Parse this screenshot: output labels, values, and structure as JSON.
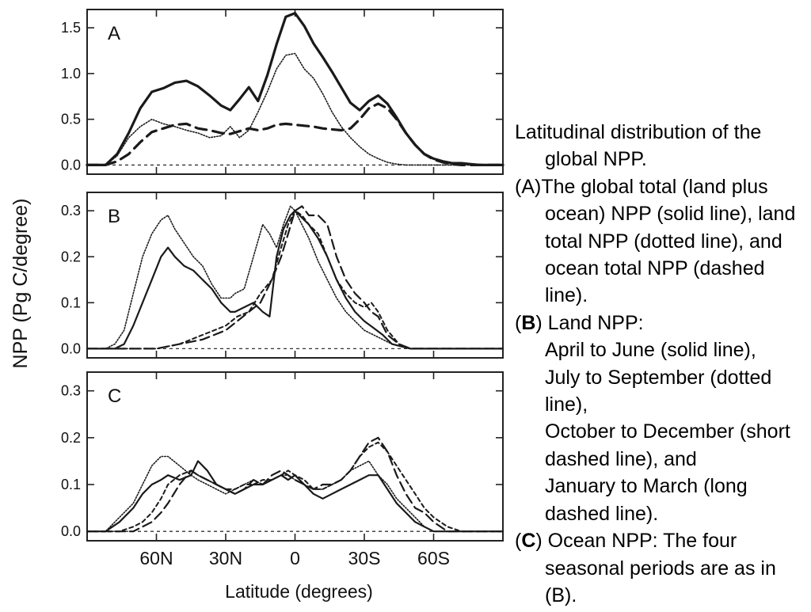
{
  "figure": {
    "ylabel": "NPP (Pg C/degree)",
    "xlabel": "Latitude  (degrees)",
    "x_ticks": [
      {
        "value": 60,
        "label": "60N"
      },
      {
        "value": 30,
        "label": "30N"
      },
      {
        "value": 0,
        "label": "0"
      },
      {
        "value": -30,
        "label": "30S"
      },
      {
        "value": -60,
        "label": "60S"
      }
    ]
  },
  "caption": {
    "title": "Latitudinal distribution of the global NPP.",
    "a_prefix": "(A)",
    "a_text": "The global total (land plus ocean) NPP (solid line), land total NPP (dotted line), and ocean total NPP (dashed line).",
    "b_open": "(",
    "b_letter": "B",
    "b_rest": ") Land NPP:",
    "b_line1": "April to June (solid line),",
    "b_line2": "July to September (dotted line),",
    "b_line3": "October to December (short dashed line), and",
    "b_line4": "January to March (long dashed line).",
    "c_open": "(",
    "c_letter": "C",
    "c_rest": ") Ocean NPP: The four seasonal periods are as in (B)."
  },
  "chart_data": [
    {
      "type": "line",
      "panel_label": "A",
      "xlabel": "Latitude  (degrees)",
      "ylabel": "NPP (Pg C/degree)",
      "xlim": [
        90,
        -90
      ],
      "ylim": [
        -0.1,
        1.7
      ],
      "yticks": [
        0.0,
        0.5,
        1.0,
        1.5
      ],
      "ytick_labels": [
        "0.0",
        "0.5",
        "1.0",
        "1.5"
      ],
      "zero_line": "dashed",
      "series": [
        {
          "style": "solid-thick",
          "x": [
            90,
            82,
            77,
            72,
            67,
            62,
            57,
            52,
            47,
            42,
            37,
            32,
            28,
            24,
            20,
            16,
            12,
            8,
            4,
            0,
            -4,
            -8,
            -12,
            -16,
            -20,
            -24,
            -28,
            -32,
            -36,
            -40,
            -44,
            -48,
            -52,
            -56,
            -60,
            -64,
            -68,
            -72,
            -76,
            -80,
            -84,
            -90
          ],
          "y": [
            0,
            0,
            0.12,
            0.35,
            0.62,
            0.8,
            0.84,
            0.9,
            0.92,
            0.86,
            0.76,
            0.65,
            0.6,
            0.72,
            0.85,
            0.7,
            0.98,
            1.32,
            1.62,
            1.66,
            1.52,
            1.33,
            1.18,
            1.02,
            0.85,
            0.68,
            0.6,
            0.7,
            0.76,
            0.67,
            0.52,
            0.35,
            0.22,
            0.12,
            0.07,
            0.04,
            0.02,
            0.02,
            0.01,
            0,
            0,
            0
          ]
        },
        {
          "style": "dotted",
          "x": [
            90,
            82,
            77,
            72,
            67,
            62,
            57,
            52,
            47,
            42,
            37,
            32,
            28,
            24,
            20,
            16,
            12,
            8,
            4,
            0,
            -4,
            -8,
            -12,
            -16,
            -20,
            -24,
            -28,
            -32,
            -36,
            -40,
            -44,
            -48,
            -52,
            -56,
            -60,
            -64,
            -68,
            -72,
            -76,
            -80,
            -84,
            -90
          ],
          "y": [
            0,
            0,
            0.1,
            0.3,
            0.42,
            0.5,
            0.45,
            0.42,
            0.38,
            0.35,
            0.3,
            0.32,
            0.42,
            0.3,
            0.38,
            0.58,
            0.8,
            1.05,
            1.2,
            1.22,
            1.05,
            0.95,
            0.78,
            0.58,
            0.42,
            0.3,
            0.2,
            0.12,
            0.07,
            0.03,
            0.01,
            0,
            0,
            0,
            0,
            0,
            0,
            0,
            0,
            0,
            0,
            0
          ]
        },
        {
          "style": "dashed",
          "x": [
            90,
            82,
            77,
            72,
            67,
            62,
            57,
            52,
            47,
            42,
            37,
            32,
            28,
            24,
            20,
            16,
            12,
            8,
            4,
            0,
            -4,
            -8,
            -12,
            -16,
            -20,
            -24,
            -28,
            -32,
            -36,
            -40,
            -44,
            -48,
            -52,
            -56,
            -60,
            -64,
            -68,
            -72,
            -76,
            -80,
            -84,
            -90
          ],
          "y": [
            0,
            0,
            0.04,
            0.12,
            0.25,
            0.36,
            0.4,
            0.44,
            0.45,
            0.4,
            0.38,
            0.35,
            0.34,
            0.37,
            0.4,
            0.38,
            0.4,
            0.44,
            0.45,
            0.44,
            0.43,
            0.42,
            0.4,
            0.39,
            0.38,
            0.4,
            0.5,
            0.62,
            0.67,
            0.62,
            0.5,
            0.35,
            0.22,
            0.12,
            0.06,
            0.03,
            0.01,
            0,
            0,
            0,
            0,
            0
          ]
        }
      ]
    },
    {
      "type": "line",
      "panel_label": "B",
      "xlabel": "Latitude  (degrees)",
      "ylabel": "NPP (Pg C/degree)",
      "xlim": [
        90,
        -90
      ],
      "ylim": [
        -0.02,
        0.34
      ],
      "yticks": [
        0.0,
        0.1,
        0.2,
        0.3
      ],
      "ytick_labels": [
        "0.0",
        "0.1",
        "0.2",
        "0.3"
      ],
      "zero_line": "dashed",
      "series": [
        {
          "style": "solid",
          "x": [
            90,
            82,
            78,
            74,
            70,
            66,
            62,
            58,
            55,
            52,
            48,
            44,
            40,
            36,
            32,
            28,
            26,
            22,
            18,
            14,
            11,
            8,
            5,
            2,
            0,
            -2,
            -6,
            -10,
            -14,
            -18,
            -22,
            -26,
            -30,
            -34,
            -38,
            -42,
            -50,
            -60,
            -70,
            -80,
            -90
          ],
          "y": [
            0,
            0,
            0,
            0.01,
            0.05,
            0.1,
            0.15,
            0.2,
            0.22,
            0.2,
            0.18,
            0.17,
            0.15,
            0.13,
            0.1,
            0.08,
            0.08,
            0.09,
            0.1,
            0.08,
            0.07,
            0.2,
            0.26,
            0.29,
            0.3,
            0.29,
            0.27,
            0.24,
            0.2,
            0.15,
            0.11,
            0.08,
            0.06,
            0.045,
            0.03,
            0.01,
            0,
            0,
            0,
            0,
            0
          ]
        },
        {
          "style": "dotted",
          "x": [
            90,
            82,
            78,
            74,
            70,
            66,
            62,
            58,
            55,
            52,
            48,
            44,
            40,
            36,
            32,
            28,
            26,
            22,
            18,
            14,
            11,
            8,
            5,
            2,
            0,
            -2,
            -6,
            -10,
            -14,
            -18,
            -22,
            -26,
            -30,
            -34,
            -38,
            -42,
            -50,
            -60,
            -70,
            -80,
            -90
          ],
          "y": [
            0,
            0,
            0.01,
            0.04,
            0.12,
            0.2,
            0.25,
            0.28,
            0.29,
            0.26,
            0.23,
            0.2,
            0.18,
            0.14,
            0.11,
            0.11,
            0.12,
            0.13,
            0.2,
            0.27,
            0.25,
            0.22,
            0.27,
            0.31,
            0.3,
            0.28,
            0.24,
            0.19,
            0.15,
            0.11,
            0.08,
            0.06,
            0.04,
            0.03,
            0.02,
            0.01,
            0,
            0,
            0,
            0,
            0
          ]
        },
        {
          "style": "short-dashed",
          "x": [
            90,
            80,
            70,
            60,
            50,
            40,
            30,
            25,
            20,
            15,
            10,
            6,
            3,
            0,
            -3,
            -6,
            -10,
            -14,
            -18,
            -22,
            -26,
            -30,
            -33,
            -36,
            -40,
            -45,
            -50,
            -60,
            -70,
            -80,
            -90
          ],
          "y": [
            0,
            0,
            0,
            0,
            0.01,
            0.03,
            0.05,
            0.07,
            0.08,
            0.12,
            0.15,
            0.22,
            0.27,
            0.3,
            0.29,
            0.27,
            0.25,
            0.2,
            0.15,
            0.12,
            0.1,
            0.09,
            0.1,
            0.08,
            0.04,
            0.01,
            0,
            0,
            0,
            0,
            0
          ]
        },
        {
          "style": "long-dashed",
          "x": [
            90,
            80,
            70,
            60,
            50,
            40,
            30,
            25,
            20,
            15,
            10,
            6,
            3,
            0,
            -3,
            -6,
            -10,
            -14,
            -18,
            -22,
            -26,
            -30,
            -33,
            -36,
            -40,
            -45,
            -50,
            -60,
            -70,
            -80,
            -90
          ],
          "y": [
            0,
            0,
            0,
            0,
            0.01,
            0.02,
            0.04,
            0.06,
            0.08,
            0.1,
            0.15,
            0.2,
            0.25,
            0.3,
            0.31,
            0.29,
            0.29,
            0.27,
            0.2,
            0.15,
            0.12,
            0.1,
            0.08,
            0.07,
            0.03,
            0.01,
            0,
            0,
            0,
            0,
            0
          ]
        }
      ]
    },
    {
      "type": "line",
      "panel_label": "C",
      "xlabel": "Latitude  (degrees)",
      "ylabel": "NPP (Pg C/degree)",
      "xlim": [
        90,
        -90
      ],
      "ylim": [
        -0.02,
        0.34
      ],
      "yticks": [
        0.0,
        0.1,
        0.2,
        0.3
      ],
      "ytick_labels": [
        "0.0",
        "0.1",
        "0.2",
        "0.3"
      ],
      "zero_line": "dashed",
      "series": [
        {
          "style": "solid",
          "x": [
            90,
            82,
            76,
            70,
            66,
            62,
            58,
            55,
            50,
            45,
            42,
            38,
            34,
            30,
            26,
            22,
            18,
            14,
            10,
            6,
            3,
            0,
            -4,
            -8,
            -12,
            -16,
            -20,
            -24,
            -28,
            -32,
            -36,
            -40,
            -44,
            -48,
            -52,
            -56,
            -60,
            -66,
            -72,
            -80,
            -90
          ],
          "y": [
            0,
            0,
            0.02,
            0.05,
            0.08,
            0.1,
            0.11,
            0.12,
            0.11,
            0.12,
            0.15,
            0.13,
            0.1,
            0.09,
            0.08,
            0.09,
            0.1,
            0.1,
            0.11,
            0.12,
            0.11,
            0.12,
            0.1,
            0.08,
            0.07,
            0.08,
            0.09,
            0.1,
            0.11,
            0.12,
            0.12,
            0.09,
            0.06,
            0.04,
            0.02,
            0.01,
            0,
            0,
            0,
            0,
            0
          ]
        },
        {
          "style": "dotted",
          "x": [
            90,
            82,
            76,
            70,
            66,
            62,
            58,
            55,
            50,
            45,
            42,
            38,
            34,
            30,
            26,
            22,
            18,
            14,
            10,
            6,
            3,
            0,
            -4,
            -8,
            -12,
            -16,
            -20,
            -24,
            -28,
            -32,
            -36,
            -40,
            -44,
            -48,
            -52,
            -56,
            -60,
            -66,
            -72,
            -80,
            -90
          ],
          "y": [
            0,
            0,
            0.03,
            0.06,
            0.1,
            0.14,
            0.16,
            0.16,
            0.14,
            0.12,
            0.11,
            0.1,
            0.09,
            0.08,
            0.09,
            0.1,
            0.11,
            0.1,
            0.11,
            0.12,
            0.12,
            0.11,
            0.1,
            0.09,
            0.09,
            0.1,
            0.11,
            0.13,
            0.14,
            0.15,
            0.12,
            0.1,
            0.07,
            0.05,
            0.03,
            0.01,
            0,
            0,
            0,
            0,
            0
          ]
        },
        {
          "style": "short-dashed",
          "x": [
            90,
            82,
            76,
            70,
            66,
            62,
            58,
            55,
            50,
            45,
            42,
            38,
            34,
            30,
            26,
            22,
            18,
            14,
            10,
            6,
            3,
            0,
            -4,
            -8,
            -12,
            -16,
            -20,
            -24,
            -28,
            -32,
            -36,
            -40,
            -44,
            -48,
            -52,
            -56,
            -60,
            -66,
            -72,
            -80,
            -90
          ],
          "y": [
            0,
            0,
            0,
            0.01,
            0.02,
            0.04,
            0.07,
            0.1,
            0.12,
            0.13,
            0.12,
            0.11,
            0.1,
            0.09,
            0.09,
            0.1,
            0.1,
            0.11,
            0.11,
            0.12,
            0.13,
            0.12,
            0.11,
            0.09,
            0.09,
            0.1,
            0.11,
            0.13,
            0.16,
            0.18,
            0.19,
            0.17,
            0.14,
            0.11,
            0.08,
            0.05,
            0.03,
            0.01,
            0,
            0,
            0
          ]
        },
        {
          "style": "long-dashed",
          "x": [
            90,
            82,
            76,
            70,
            66,
            62,
            58,
            55,
            50,
            45,
            42,
            38,
            34,
            30,
            26,
            22,
            18,
            14,
            10,
            6,
            3,
            0,
            -4,
            -8,
            -12,
            -16,
            -20,
            -24,
            -28,
            -32,
            -36,
            -40,
            -44,
            -48,
            -52,
            -56,
            -60,
            -66,
            -72,
            -80,
            -90
          ],
          "y": [
            0,
            0,
            0,
            0,
            0.01,
            0.02,
            0.04,
            0.06,
            0.1,
            0.13,
            0.12,
            0.11,
            0.1,
            0.09,
            0.08,
            0.09,
            0.11,
            0.1,
            0.12,
            0.13,
            0.12,
            0.11,
            0.1,
            0.09,
            0.1,
            0.1,
            0.11,
            0.13,
            0.16,
            0.19,
            0.2,
            0.17,
            0.12,
            0.08,
            0.05,
            0.04,
            0.02,
            0,
            0,
            0,
            0
          ]
        }
      ]
    }
  ]
}
